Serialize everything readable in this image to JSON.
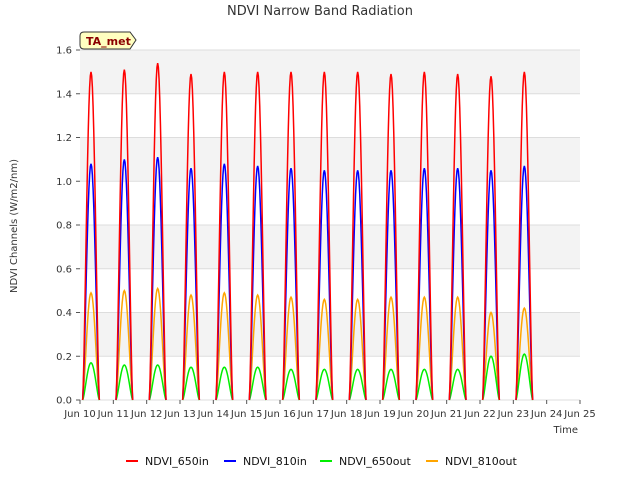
{
  "chart_data": {
    "type": "line",
    "title": "NDVI Narrow Band Radiation",
    "xlabel": "Time",
    "ylabel": "NDVI Channels (W/m2/nm)",
    "badge": "TA_met",
    "x_domain": [
      "Jun 10",
      "Jun 25"
    ],
    "x_ticks": [
      "Jun 10",
      "Jun 11",
      "Jun 12",
      "Jun 13",
      "Jun 14",
      "Jun 15",
      "Jun 16",
      "Jun 17",
      "Jun 18",
      "Jun 19",
      "Jun 20",
      "Jun 21",
      "Jun 22",
      "Jun 23",
      "Jun 24",
      "Jun 25"
    ],
    "ylim": [
      0.0,
      1.6
    ],
    "y_ticks": [
      "0.0",
      "0.2",
      "0.4",
      "0.6",
      "0.8",
      "1.0",
      "1.2",
      "1.4",
      "1.6"
    ],
    "grid": true,
    "legend_position": "bottom",
    "peak_days": [
      "Jun 10",
      "Jun 11",
      "Jun 12",
      "Jun 13",
      "Jun 14",
      "Jun 15",
      "Jun 16",
      "Jun 17",
      "Jun 18",
      "Jun 19",
      "Jun 20",
      "Jun 21",
      "Jun 22",
      "Jun 23"
    ],
    "series": [
      {
        "name": "NDVI_650in",
        "color": "#ff0000",
        "daily_peak": [
          1.5,
          1.51,
          1.54,
          1.49,
          1.5,
          1.5,
          1.5,
          1.5,
          1.5,
          1.49,
          1.5,
          1.49,
          1.48,
          1.5
        ]
      },
      {
        "name": "NDVI_810in",
        "color": "#0000ff",
        "daily_peak": [
          1.08,
          1.1,
          1.11,
          1.06,
          1.08,
          1.07,
          1.06,
          1.05,
          1.05,
          1.05,
          1.06,
          1.06,
          1.05,
          1.07
        ]
      },
      {
        "name": "NDVI_650out",
        "color": "#00ee00",
        "daily_peak": [
          0.17,
          0.16,
          0.16,
          0.15,
          0.15,
          0.15,
          0.14,
          0.14,
          0.14,
          0.14,
          0.14,
          0.14,
          0.2,
          0.21
        ]
      },
      {
        "name": "NDVI_810out",
        "color": "#ffa500",
        "daily_peak": [
          0.49,
          0.5,
          0.51,
          0.48,
          0.49,
          0.48,
          0.47,
          0.46,
          0.46,
          0.47,
          0.47,
          0.47,
          0.4,
          0.42
        ]
      }
    ]
  }
}
